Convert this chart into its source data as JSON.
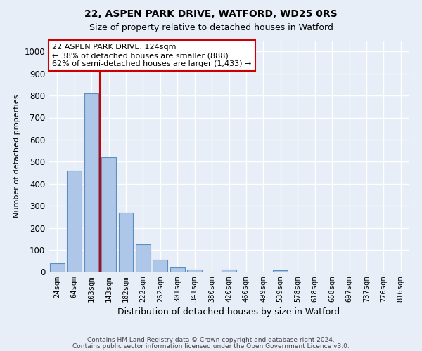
{
  "title1": "22, ASPEN PARK DRIVE, WATFORD, WD25 0RS",
  "title2": "Size of property relative to detached houses in Watford",
  "xlabel": "Distribution of detached houses by size in Watford",
  "ylabel": "Number of detached properties",
  "categories": [
    "24sqm",
    "64sqm",
    "103sqm",
    "143sqm",
    "182sqm",
    "222sqm",
    "262sqm",
    "301sqm",
    "341sqm",
    "380sqm",
    "420sqm",
    "460sqm",
    "499sqm",
    "539sqm",
    "578sqm",
    "618sqm",
    "658sqm",
    "697sqm",
    "737sqm",
    "776sqm",
    "816sqm"
  ],
  "values": [
    40,
    460,
    810,
    520,
    270,
    125,
    55,
    20,
    12,
    0,
    10,
    0,
    0,
    8,
    0,
    0,
    0,
    0,
    0,
    0,
    0
  ],
  "bar_color": "#aec6e8",
  "bar_edge_color": "#5a8fc0",
  "vline_color": "#cc0000",
  "annotation_text": "22 ASPEN PARK DRIVE: 124sqm\n← 38% of detached houses are smaller (888)\n62% of semi-detached houses are larger (1,433) →",
  "annotation_box_color": "#ffffff",
  "annotation_box_edge": "#cc0000",
  "bg_color": "#e8eef7",
  "grid_color": "#ffffff",
  "footer1": "Contains HM Land Registry data © Crown copyright and database right 2024.",
  "footer2": "Contains public sector information licensed under the Open Government Licence v3.0.",
  "ylim": [
    0,
    1050
  ],
  "yticks": [
    0,
    100,
    200,
    300,
    400,
    500,
    600,
    700,
    800,
    900,
    1000
  ]
}
